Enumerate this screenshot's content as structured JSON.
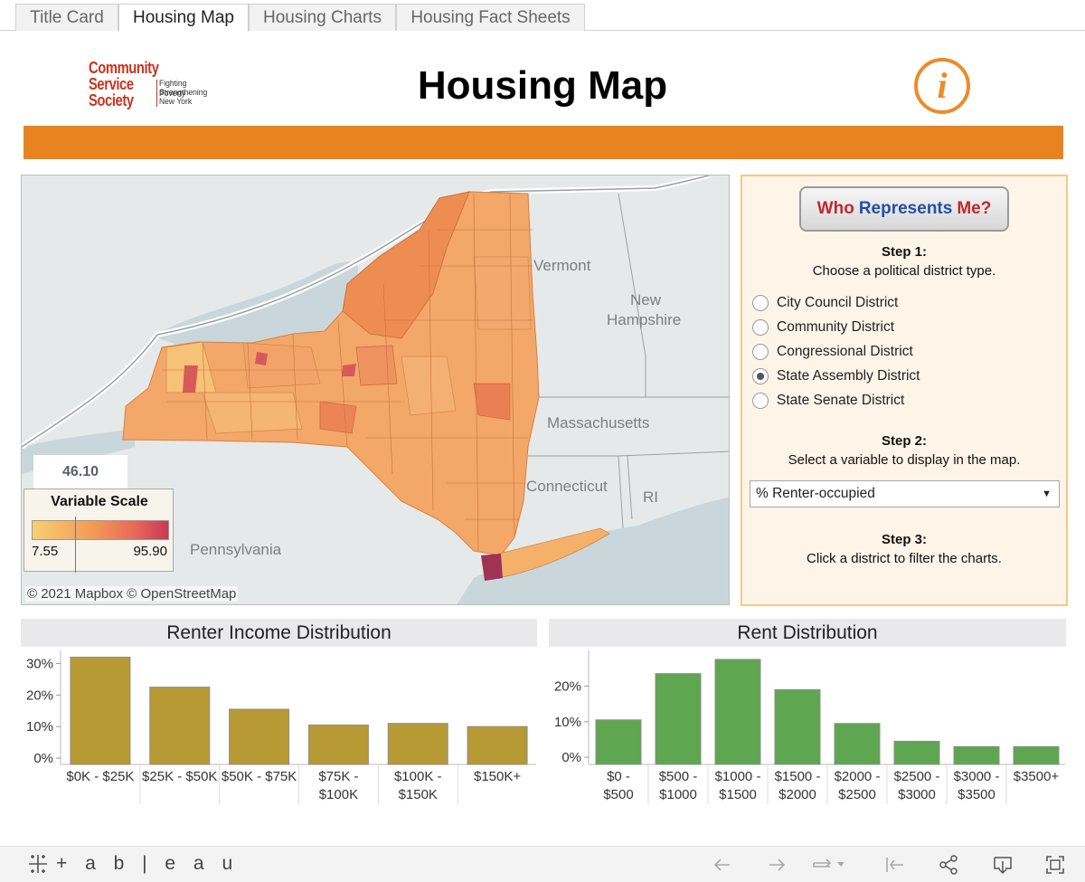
{
  "tabs": [
    {
      "label": "Title Card",
      "active": false
    },
    {
      "label": "Housing Map",
      "active": true
    },
    {
      "label": "Housing Charts",
      "active": false
    },
    {
      "label": "Housing Fact Sheets",
      "active": false
    }
  ],
  "header": {
    "logo_lines": [
      "Community",
      "Service",
      "Society"
    ],
    "logo_tagline": [
      "Fighting Poverty",
      "Strengthening",
      "New York"
    ],
    "title": "Housing Map",
    "info_icon": "info-icon",
    "accent_color": "#e8841f"
  },
  "map": {
    "labels": {
      "vermont": "Vermont",
      "new_hampshire_1": "New",
      "new_hampshire_2": "Hampshire",
      "massachusetts": "Massachusetts",
      "connecticut": "Connecticut",
      "ri": "RI",
      "pennsylvania": "Pennsylvania"
    },
    "selected_value": "46.10",
    "legend": {
      "title": "Variable Scale",
      "min": "7.55",
      "max": "95.90"
    },
    "attribution": "© 2021 Mapbox  © OpenStreetMap"
  },
  "panel": {
    "who_represents": [
      "Who",
      "Represents",
      "Me?"
    ],
    "step1_heading": "Step 1:",
    "step1_text": "Choose a political district type.",
    "district_options": [
      {
        "label": "City Council District",
        "selected": false
      },
      {
        "label": "Community District",
        "selected": false
      },
      {
        "label": "Congressional District",
        "selected": false
      },
      {
        "label": "State Assembly District",
        "selected": true
      },
      {
        "label": "State Senate District",
        "selected": false
      }
    ],
    "step2_heading": "Step 2:",
    "step2_text": "Select a variable to display in the map.",
    "variable_selected": "% Renter-occupied",
    "step3_heading": "Step 3:",
    "step3_text": "Click a district to filter the charts."
  },
  "chart_data": [
    {
      "type": "bar",
      "title": "Renter Income Distribution",
      "categories": [
        [
          "$0K - $25K"
        ],
        [
          "$25K - $50K"
        ],
        [
          "$50K - $75K"
        ],
        [
          "$75K -",
          "$100K"
        ],
        [
          "$100K -",
          "$150K"
        ],
        [
          "$150K+"
        ]
      ],
      "values": [
        32,
        22.5,
        15.5,
        10.5,
        11,
        10
      ],
      "y_ticks": [
        "0%",
        "10%",
        "20%",
        "30%"
      ],
      "y_tick_values": [
        0,
        10,
        20,
        30
      ],
      "ylim": [
        -2,
        33
      ],
      "color": "#b89a34"
    },
    {
      "type": "bar",
      "title": "Rent Distribution",
      "categories": [
        [
          "$0 -",
          "$500"
        ],
        [
          "$500 -",
          "$1000"
        ],
        [
          "$1000 -",
          "$1500"
        ],
        [
          "$1500 -",
          "$2000"
        ],
        [
          "$2000 -",
          "$2500"
        ],
        [
          "$2500 -",
          "$3000"
        ],
        [
          "$3000 -",
          "$3500"
        ],
        [
          "$3500+"
        ]
      ],
      "values": [
        10.5,
        23.5,
        27.5,
        19,
        9.5,
        4.5,
        3,
        3
      ],
      "y_ticks": [
        "0%",
        "10%",
        "20%"
      ],
      "y_tick_values": [
        0,
        10,
        20
      ],
      "ylim": [
        -2,
        29
      ],
      "color": "#5ea650"
    }
  ],
  "footer": {
    "brand": "+ a b | e a u",
    "icons": [
      "undo-icon",
      "redo-icon",
      "revert-icon",
      "pause-icon",
      "share-icon",
      "download-icon",
      "fullscreen-icon"
    ]
  }
}
